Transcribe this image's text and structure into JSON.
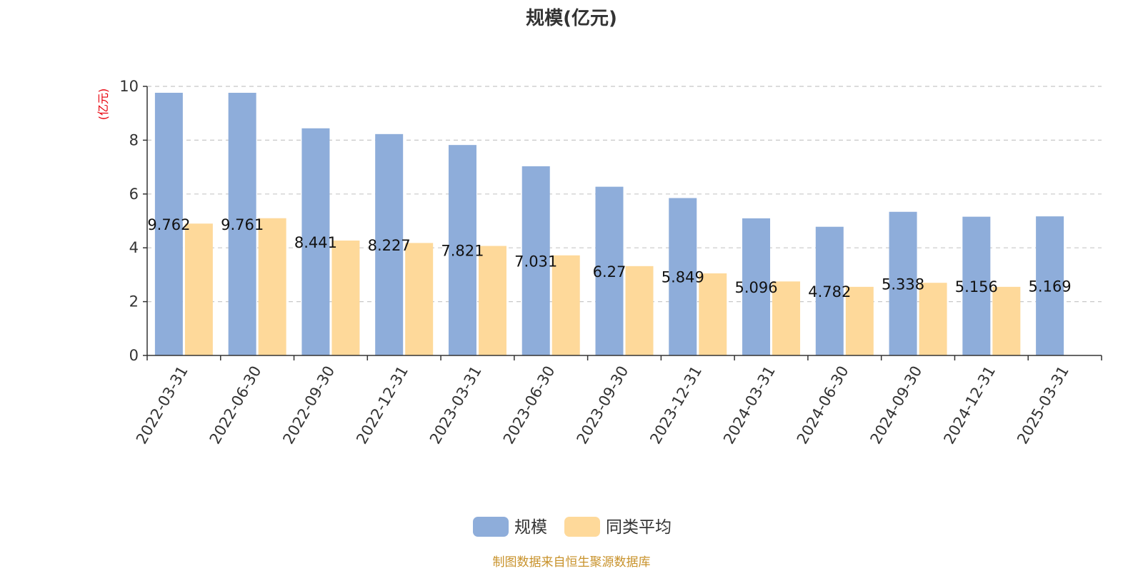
{
  "colors": {
    "series1": "#8EADDA",
    "series2": "#FED99A",
    "unit_label": "#E8000B",
    "source": "#C8922B",
    "axis": "#333333",
    "grid": "#C8C8C8"
  },
  "chart_data": {
    "type": "bar",
    "title": "规模(亿元)",
    "ylabel": "(亿元)",
    "xlabel": "",
    "ylim": [
      0,
      10
    ],
    "yticks": [
      0,
      2,
      4,
      6,
      8,
      10
    ],
    "grid": true,
    "legend_position": "bottom-center",
    "categories": [
      "2022-03-31",
      "2022-06-30",
      "2022-09-30",
      "2022-12-31",
      "2023-03-31",
      "2023-06-30",
      "2023-09-30",
      "2023-12-31",
      "2024-03-31",
      "2024-06-30",
      "2024-09-30",
      "2024-12-31",
      "2025-03-31"
    ],
    "series": [
      {
        "name": "规模",
        "values": [
          9.762,
          9.761,
          8.441,
          8.227,
          7.821,
          7.031,
          6.27,
          5.849,
          5.096,
          4.782,
          5.338,
          5.156,
          5.169
        ],
        "data_labels": true
      },
      {
        "name": "同类平均",
        "values": [
          4.9,
          5.1,
          4.27,
          4.18,
          4.07,
          3.72,
          3.32,
          3.05,
          2.75,
          2.55,
          2.7,
          2.55,
          null
        ],
        "data_labels": false
      }
    ]
  },
  "source_note": "制图数据来自恒生聚源数据库"
}
